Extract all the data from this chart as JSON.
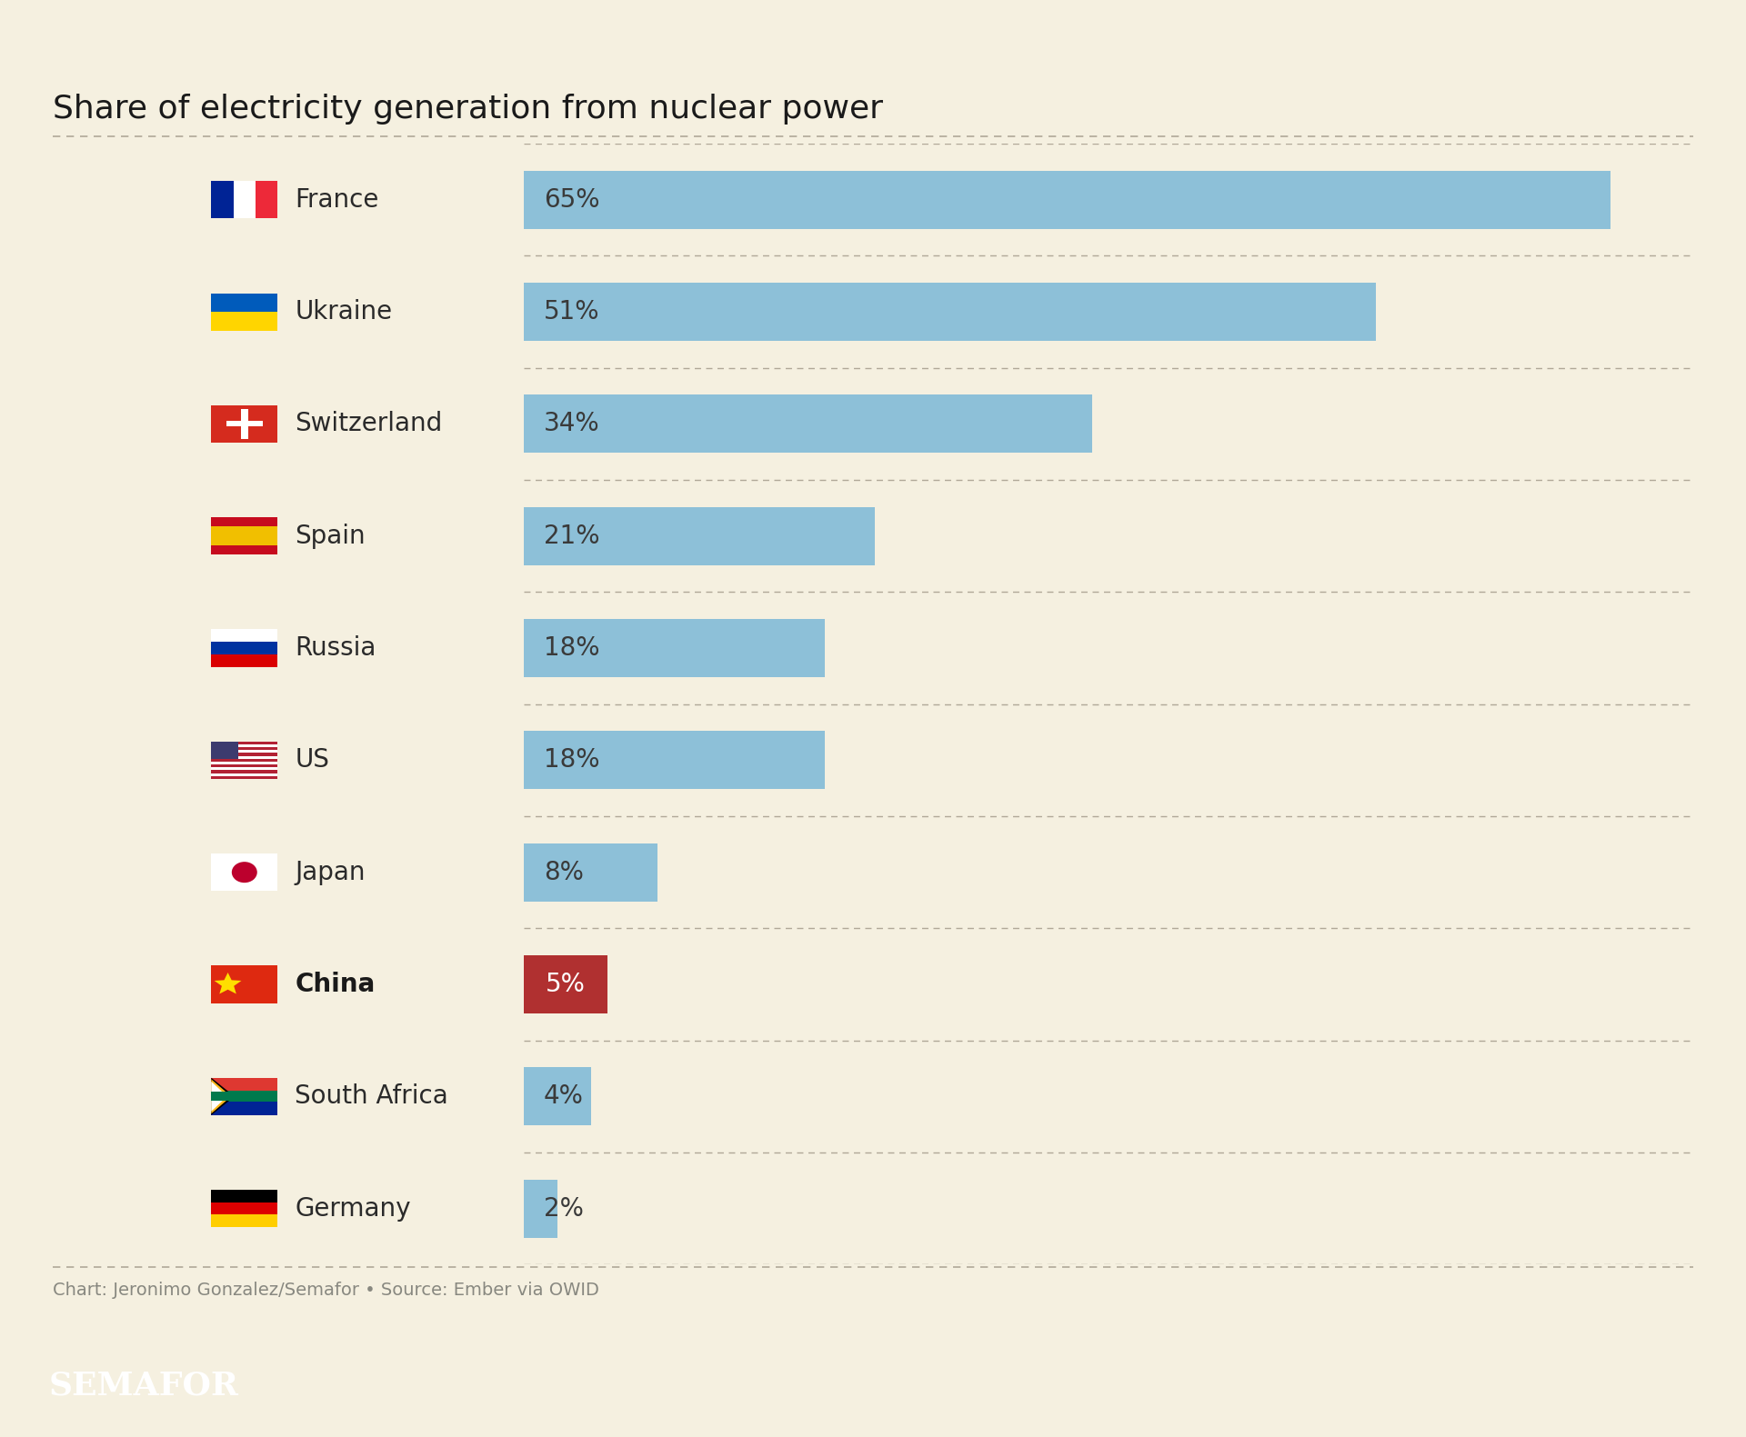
{
  "title": "Share of electricity generation from nuclear power",
  "countries": [
    "France",
    "Ukraine",
    "Switzerland",
    "Spain",
    "Russia",
    "US",
    "Japan",
    "China",
    "South Africa",
    "Germany"
  ],
  "values": [
    65,
    51,
    34,
    21,
    18,
    18,
    8,
    5,
    4,
    2
  ],
  "bar_color_default": "#8dc0d8",
  "bar_color_china": "#b03030",
  "text_color_china": "#ffffff",
  "text_color_default": "#3a3a3a",
  "background_color": "#f5f0e0",
  "title_fontsize": 26,
  "label_fontsize": 20,
  "value_fontsize": 20,
  "source_text": "Chart: Jeronimo Gonzalez/Semafor • Source: Ember via OWID",
  "semafor_text": "SEMAFOR",
  "max_val": 70
}
